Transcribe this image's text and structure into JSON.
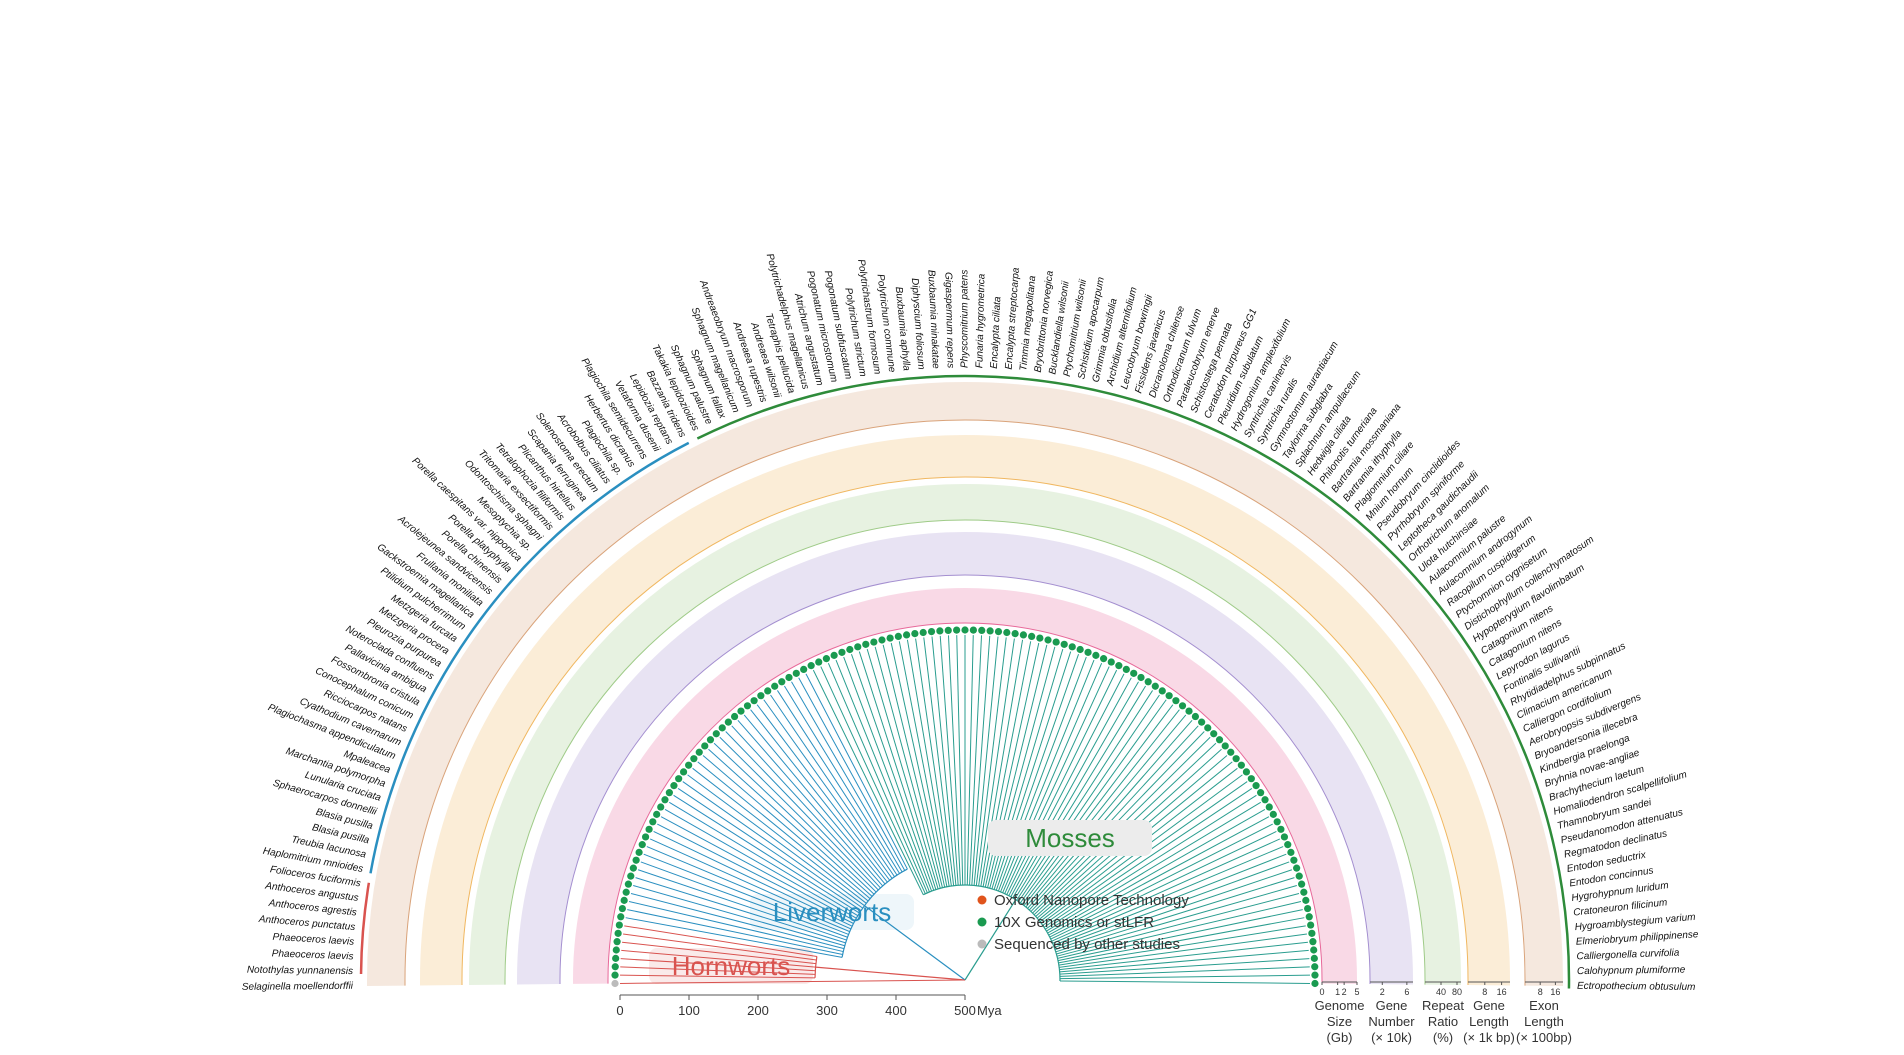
{
  "outgroup": "Selaginella moellendorffii",
  "clades": [
    {
      "label": "Hornworts",
      "color": "#d9534f",
      "species": [
        "Notothylas yunnanensis",
        "Phaeoceros laevis",
        "Phaeoceros laevis",
        "Anthoceros punctatus",
        "Anthoceros agrestis",
        "Anthoceros angustus",
        "Folioceros fuciformis"
      ]
    },
    {
      "label": "Liverworts",
      "color": "#2a8fc0",
      "species": [
        "Haplomitrium mnioides",
        "Treubia lacunosa",
        "Blasia pusilla",
        "Blasia pusilla",
        "Sphaerocarpos donnellii",
        "Lunularia cruciata",
        "Marchantia polymorpha",
        "Mpaleacea",
        "Plagiochasma appendiculatum",
        "Cyathodium cavernarum",
        "Ricciocarpos natans",
        "Conocephalum conicum",
        "Fossombronia cristula",
        "Pallavicinia ambigua",
        "Noteroclada confluens",
        "Pleurozia purpurea",
        "Metzgeria procera",
        "Metzgeria furcata",
        "Ptilidium pulcherrimum",
        "Gackstroemia magellanica",
        "Frullania moniliata",
        "Acrolejeunea sandvicensis",
        "Porella chinensis",
        "Porella platyphylla",
        "Porella caespitans var. nipponica",
        "Mesoptychia sp.",
        "Odontoschisma sphagni",
        "Tritomaria exsectiformis",
        "Tetralophozia filiformis",
        "Plicanthus hirtellus",
        "Scapania ferruginea",
        "Solenostoma erectum",
        "Acrobolbus ciliatus",
        "Plagiochila sp.",
        "Herbertus dicranus",
        "Plagiochila semidecurrens",
        "Vetaforma dusenii",
        "Lepidozia reptans",
        "Bazzania tridens"
      ]
    },
    {
      "label": "Mosses",
      "color": "#2e8b3a",
      "species": [
        "Takakia lepidozioides",
        "Sphagnum palustre",
        "Sphagnum fallax",
        "Sphagnum magellanicum",
        "Andreaeobryum macrosporum",
        "Andreaea rupestris",
        "Andreaea wilsonii",
        "Tetraphis pellucida",
        "Polytrichadelphus magellanicus",
        "Atrichum angustatum",
        "Pogonatum microstomum",
        "Pogonatum subfuscatum",
        "Polytrichum strictum",
        "Polytrichastrum formosum",
        "Polytrichum commune",
        "Buxbaumia aphylla",
        "Diphyscium foliosum",
        "Buxbaumia minakatae",
        "Gigaspermum repens",
        "Physcomitrium patens",
        "Funaria hygrometrica",
        "Encalypta ciliata",
        "Encalypta streptocarpa",
        "Timmia megapolitana",
        "Bryobrittonia norvegica",
        "Bucklandiella wilsonii",
        "Ptychomitrium wilsonii",
        "Schistidium apocarpum",
        "Grimmia obtusifolia",
        "Archidium alternifolium",
        "Leucobryum bowringii",
        "Fissidens javanicus",
        "Dicranoloma chilense",
        "Orthodicranum fulvum",
        "Paraleucobryum enerve",
        "Schistostega pennata",
        "Ceratodon purpureus GG1",
        "Pleuridium subulatum",
        "Hydrogonium amplexifolium",
        "Syntrichia caninervis",
        "Syntrichia ruralis",
        "Gymnostomum aurantiacum",
        "Taylorina subglabra",
        "Splachnum ampullaceum",
        "Hedwigia ciliata",
        "Philonotis turneriana",
        "Bartramia mossmaniana",
        "Bartramia ithyphylla",
        "Plagiomnium ciliare",
        "Mnium hornum",
        "Pseudobryum cinclidioides",
        "Pyrrhobryum spiniforme",
        "Leptotheca gaudichaudii",
        "Orthotrichum anomalum",
        "Ulota hutchinsiae",
        "Aulacomnium palustre",
        "Aulacomnium androgynum",
        "Racopilum cuspidigerum",
        "Ptychomnion cygnisetum",
        "Distichophyllum collenchymatosum",
        "Hypopterygium flavolimbatum",
        "Catagonium nitens",
        "Catagonium nitens",
        "Lepyrodon lagurus",
        "Fontinalis sullivantii",
        "Rhytidiadelphus subpinnatus",
        "Climacium americanum",
        "Calliergon cordifolium",
        "Aerobryopsis subdivergens",
        "Bryoandersonia illecebra",
        "Kindbergia praelonga",
        "Bryhnia novae-angliae",
        "Brachythecium laetum",
        "Homaliodendron scalpellifolium",
        "Thamnobryum sandei",
        "Pseudanomodon attenuatus",
        "Regmatodon declinatus",
        "Entodon seductrix",
        "Entodon concinnus",
        "Hygrohypnum luridum",
        "Cratoneuron filicinum",
        "Hygroamblystegium varium",
        "Elmeriobryum philippinense",
        "Calliergonella curvifolia",
        "Calohypnum plumiforme",
        "Ectropothecium obtusulum"
      ]
    }
  ],
  "legend": [
    {
      "label": "Oxford Nanopore Technology",
      "color": "#e0541c"
    },
    {
      "label": "10X Genomics or stLFR",
      "color": "#1a9a50"
    },
    {
      "label": "Sequenced by other studies",
      "color": "#bbbbbb"
    }
  ],
  "time_axis": {
    "ticks": [
      0,
      100,
      200,
      300,
      400,
      500
    ],
    "lim": [
      0,
      500
    ],
    "unit": "Mya"
  },
  "tracks": [
    {
      "label": [
        "Genome",
        "Size",
        "(Gb)"
      ],
      "color": "#e8699a",
      "scale": "sqrt",
      "lim": [
        0,
        5
      ],
      "ticks": [
        0,
        1,
        2,
        5
      ]
    },
    {
      "label": [
        "Gene",
        "Number",
        "(× 10k)"
      ],
      "color": "#a48fd0",
      "lim": [
        0,
        7
      ],
      "ticks": [
        2,
        6
      ]
    },
    {
      "label": [
        "Repeat",
        "Ratio",
        "(%)"
      ],
      "color": "#9fcb88",
      "lim": [
        0,
        90
      ],
      "ticks": [
        40,
        80
      ]
    },
    {
      "label": [
        "Gene",
        "Length",
        "(× 1k bp)"
      ],
      "color": "#f0b760",
      "lim": [
        0,
        20
      ],
      "ticks": [
        8,
        16
      ]
    },
    {
      "label": [
        "Exon",
        "Length",
        "(× 100bp)"
      ],
      "color": "#d9a37a",
      "lim": [
        0,
        20
      ],
      "ticks": [
        8,
        16
      ]
    }
  ]
}
